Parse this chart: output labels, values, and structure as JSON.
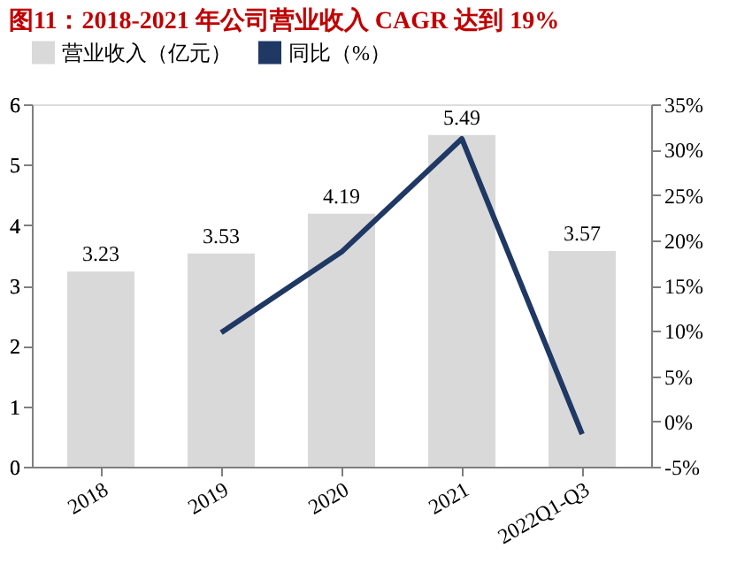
{
  "chart_data": {
    "type": "bar",
    "title": "图11：2018-2021 年公司营业收入 CAGR 达到 19%",
    "categories": [
      "2018",
      "2019",
      "2020",
      "2021",
      "2022Q1-Q3"
    ],
    "series": [
      {
        "name": "营业收入（亿元）",
        "color": "#d9d9d9",
        "values": [
          3.23,
          3.53,
          4.19,
          5.49,
          3.57
        ],
        "value_labels": [
          "3.23",
          "3.53",
          "4.19",
          "5.49",
          "3.57"
        ]
      },
      {
        "name": "同比（%）",
        "type": "line",
        "axis": "y2",
        "color": "#1f3864",
        "values": [
          null,
          9.8,
          18.7,
          31.2,
          -1.4
        ]
      }
    ],
    "ylim": [
      0,
      6
    ],
    "yticks": [
      0,
      1,
      2,
      3,
      4,
      5,
      6
    ],
    "y2lim": [
      -5,
      35
    ],
    "y2ticks": [
      {
        "value": -5,
        "label": "-5%"
      },
      {
        "value": 0,
        "label": "0%"
      },
      {
        "value": 5,
        "label": "5%"
      },
      {
        "value": 10,
        "label": "10%"
      },
      {
        "value": 15,
        "label": "15%"
      },
      {
        "value": 20,
        "label": "20%"
      },
      {
        "value": 25,
        "label": "25%"
      },
      {
        "value": 30,
        "label": "30%"
      },
      {
        "value": 35,
        "label": "35%"
      }
    ],
    "grid": false,
    "legend": "top",
    "marker": "none",
    "line_style": "solid"
  }
}
